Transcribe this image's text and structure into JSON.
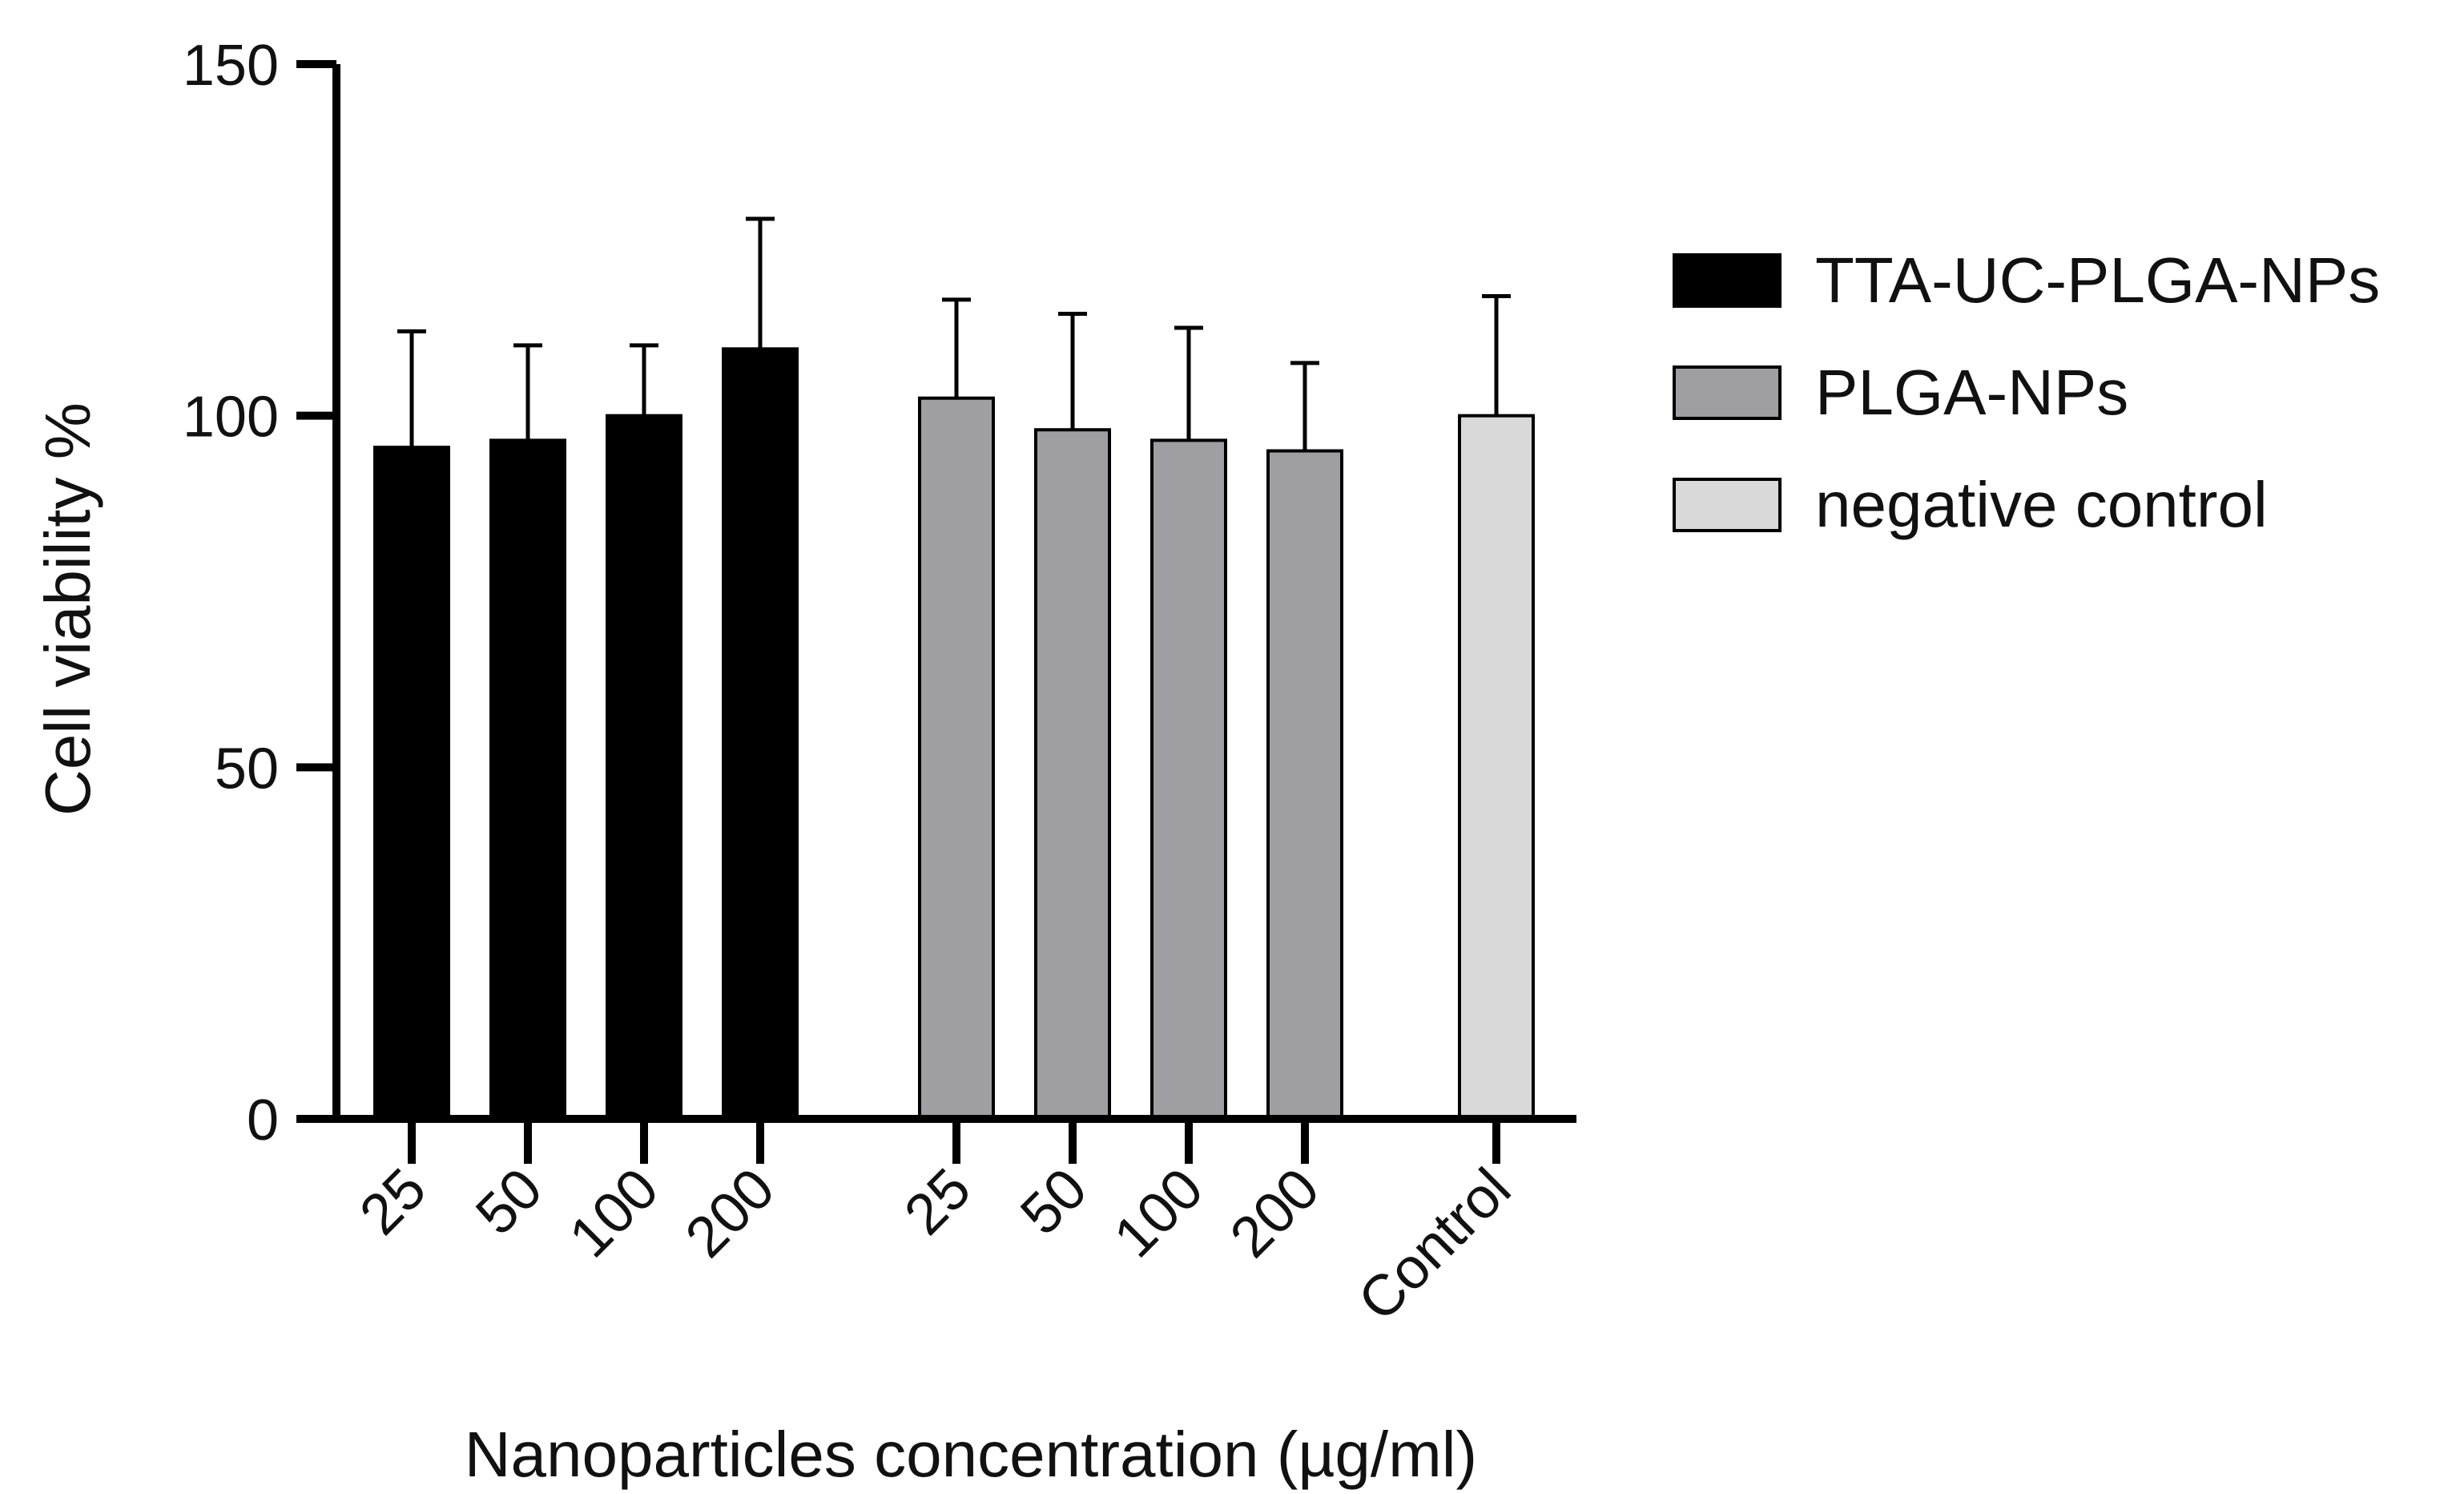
{
  "chart_data": {
    "type": "bar",
    "title": "",
    "xlabel": "Nanoparticles concentration (µg/ml)",
    "ylabel": "Cell viability %",
    "ylim": [
      0,
      150
    ],
    "yticks": [
      "0",
      "50",
      "100",
      "150"
    ],
    "grid": false,
    "legend_position": "right",
    "series": [
      {
        "name": "TTA-UC-PLGA-NPs",
        "color": "#000000",
        "categories": [
          "25",
          "50",
          "100",
          "200"
        ],
        "values": [
          95.5,
          96.5,
          100,
          109.5
        ],
        "errors": [
          16.5,
          13.5,
          10,
          18.5
        ]
      },
      {
        "name": "PLGA-NPs",
        "color": "#9e9ea3",
        "categories": [
          "25",
          "50",
          "100",
          "200"
        ],
        "values": [
          102.5,
          98,
          96.5,
          95
        ],
        "errors": [
          14,
          16.5,
          16,
          12.5
        ]
      },
      {
        "name": "negative control",
        "color": "#d9d9d9",
        "categories": [
          "Control"
        ],
        "values": [
          100
        ],
        "errors": [
          17
        ]
      }
    ]
  }
}
